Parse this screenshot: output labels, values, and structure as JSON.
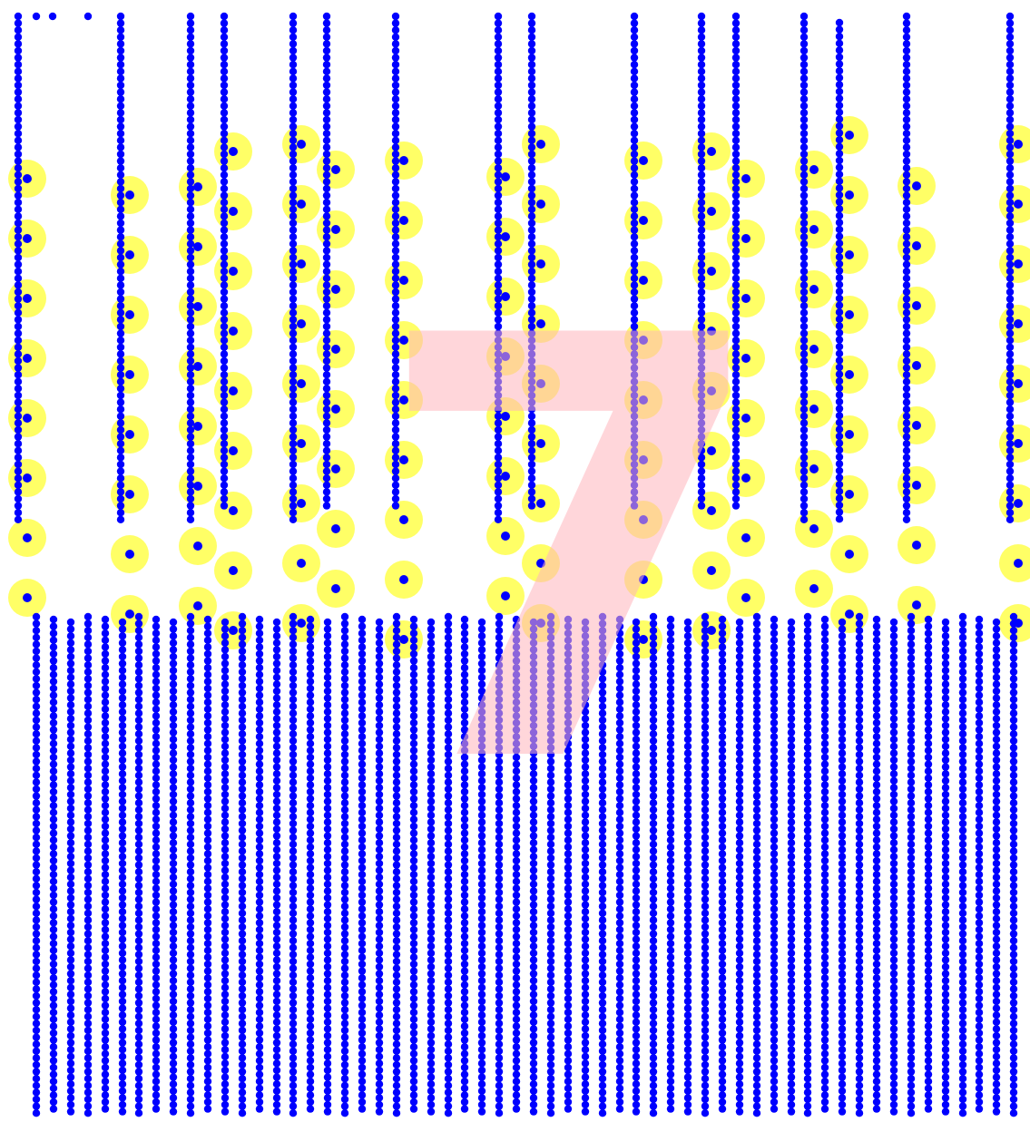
{
  "glyph": {
    "text": "7"
  },
  "colors": {
    "background": "#ffffff",
    "dot": "#0000ff",
    "halo": "#ffff66",
    "halo_overlap_dot": "#808080",
    "glyph": "#ffb6bd"
  }
}
